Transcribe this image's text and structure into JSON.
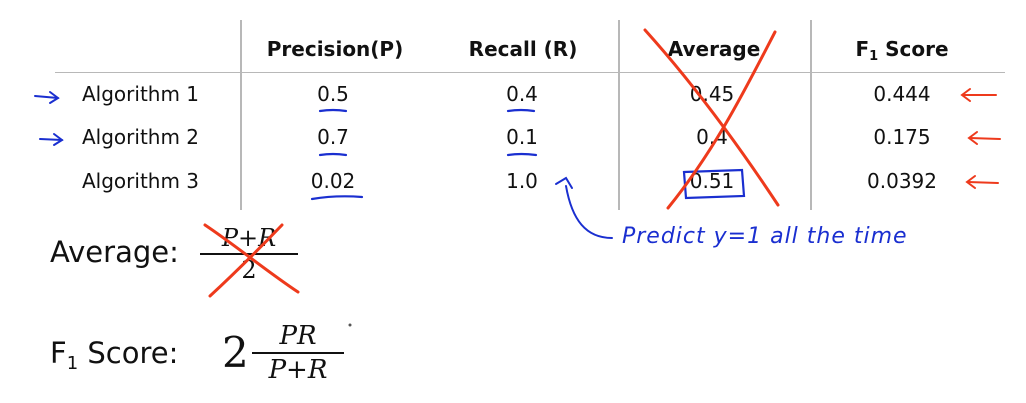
{
  "table": {
    "columns": [
      "",
      "Precision(P)",
      "Recall (R)",
      "Average",
      "F",
      "Score"
    ],
    "headers": {
      "precision": "Precision(P)",
      "recall": "Recall (R)",
      "average": "Average",
      "f1_main": "F",
      "f1_sub": "1",
      "f1_rest": " Score"
    },
    "rows": [
      {
        "name": "Algorithm 1",
        "precision": "0.5",
        "recall": "0.4",
        "average": "0.45",
        "f1": "0.444"
      },
      {
        "name": "Algorithm 2",
        "precision": "0.7",
        "recall": "0.1",
        "average": "0.4",
        "f1": "0.175"
      },
      {
        "name": "Algorithm 3",
        "precision": "0.02",
        "recall": "1.0",
        "average": "0.51",
        "f1": "0.0392"
      }
    ]
  },
  "formulas": {
    "average_label": "Average:",
    "average_num": "P+R",
    "average_den": "2",
    "f1_label_main": "F",
    "f1_label_sub": "1",
    "f1_label_rest": " Score:",
    "f1_coef": "2",
    "f1_num": "PR",
    "f1_den": "P+R"
  },
  "annotation": {
    "note": "Predict y=1 all the time"
  },
  "colors": {
    "blue_ink": "#1a2fd0",
    "red_ink": "#ee3a1c",
    "grid": "#b8b8b8"
  }
}
